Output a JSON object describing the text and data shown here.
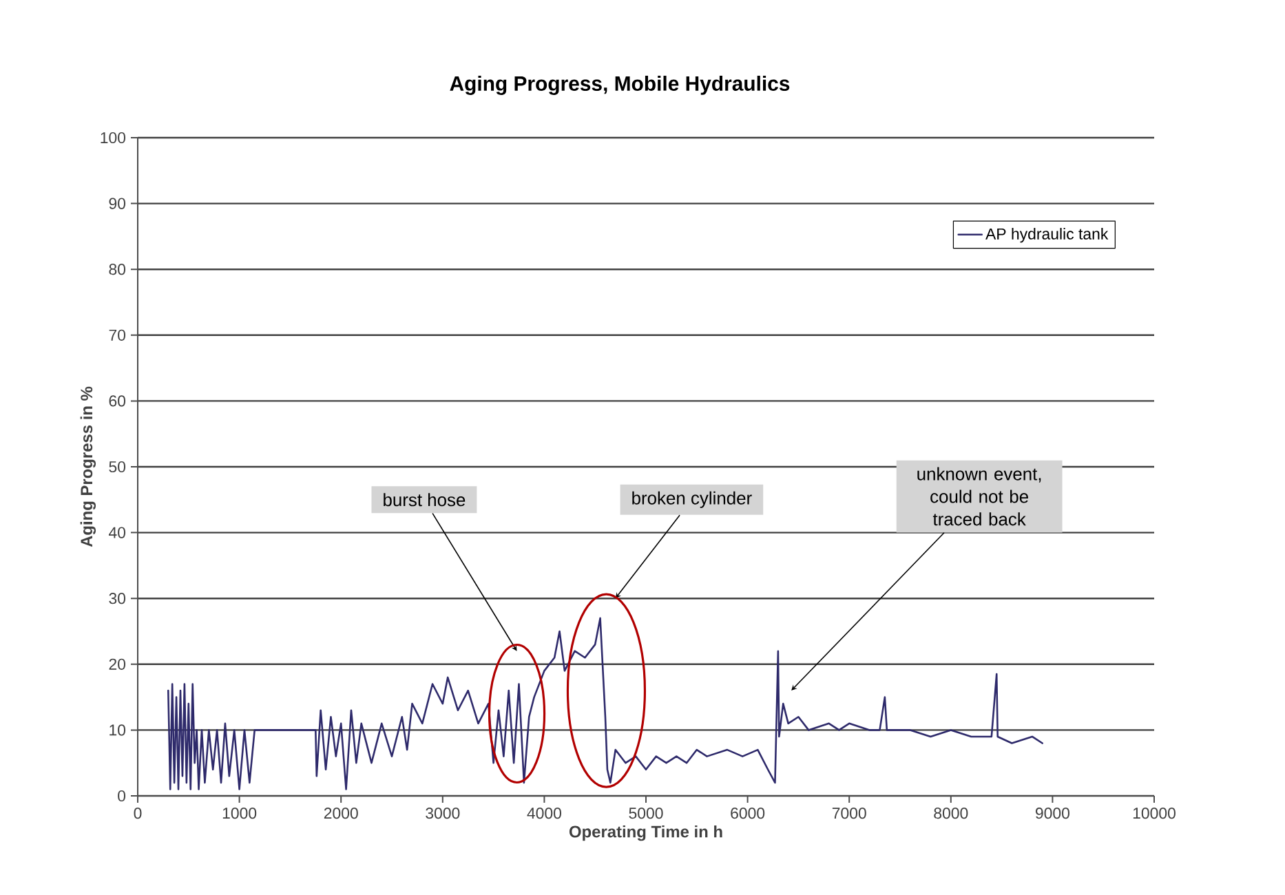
{
  "chart_data": {
    "type": "line",
    "title": "Aging Progress, Mobile Hydraulics",
    "xlabel": "Operating Time in h",
    "ylabel": "Aging Progress in %",
    "xlim": [
      0,
      10000
    ],
    "xticks": [
      0,
      1000,
      2000,
      3000,
      4000,
      5000,
      6000,
      7000,
      8000,
      9000,
      10000
    ],
    "ylim": [
      0,
      100
    ],
    "yticks": [
      0,
      10,
      20,
      30,
      40,
      50,
      60,
      70,
      80,
      90,
      100
    ],
    "grid": "y",
    "legend": "top right",
    "marker": "none",
    "line_style": "solid",
    "annotations": [
      "burst hose",
      "broken cylinder",
      "unknown event, could not be traced back"
    ],
    "series": [
      {
        "name": "AP hydraulic tank",
        "color": "#2e2a6b",
        "x": [
          300,
          320,
          340,
          360,
          380,
          400,
          420,
          440,
          460,
          480,
          500,
          520,
          540,
          560,
          580,
          600,
          630,
          660,
          700,
          740,
          780,
          820,
          860,
          900,
          950,
          1000,
          1050,
          1100,
          1150,
          1200,
          1750,
          1760,
          1800,
          1850,
          1900,
          1950,
          2000,
          2050,
          2100,
          2150,
          2200,
          2300,
          2400,
          2500,
          2600,
          2650,
          2700,
          2800,
          2900,
          3000,
          3050,
          3150,
          3250,
          3350,
          3450,
          3500,
          3550,
          3600,
          3650,
          3700,
          3750,
          3800,
          3850,
          3900,
          4000,
          4100,
          4150,
          4200,
          4300,
          4400,
          4500,
          4550,
          4580,
          4600,
          4620,
          4650,
          4700,
          4800,
          4900,
          5000,
          5100,
          5200,
          5300,
          5400,
          5500,
          5600,
          5800,
          5950,
          6100,
          6200,
          6270,
          6300,
          6310,
          6350,
          6400,
          6500,
          6600,
          6800,
          6900,
          7000,
          7200,
          7300,
          7350,
          7370,
          7600,
          7800,
          8000,
          8200,
          8400,
          8450,
          8460,
          8600,
          8800,
          8900
        ],
        "values": [
          16,
          1,
          17,
          2,
          15,
          1,
          16,
          3,
          17,
          2,
          14,
          1,
          17,
          5,
          10,
          1,
          10,
          2,
          10,
          4,
          10,
          2,
          11,
          3,
          10,
          1,
          10,
          2,
          10,
          10,
          10,
          3,
          13,
          4,
          12,
          6,
          11,
          1,
          13,
          5,
          11,
          5,
          11,
          6,
          12,
          7,
          14,
          11,
          17,
          14,
          18,
          13,
          16,
          11,
          14,
          5,
          13,
          6,
          16,
          5,
          17,
          2,
          12,
          15,
          19,
          21,
          25,
          19,
          22,
          21,
          23,
          27,
          18,
          12,
          4,
          2,
          7,
          5,
          6,
          4,
          6,
          5,
          6,
          5,
          7,
          6,
          7,
          6,
          7,
          4,
          2,
          22,
          9,
          14,
          11,
          12,
          10,
          11,
          10,
          11,
          10,
          10,
          15,
          10,
          10,
          9,
          10,
          9,
          9,
          18.5,
          9,
          8,
          9,
          8
        ]
      }
    ]
  }
}
